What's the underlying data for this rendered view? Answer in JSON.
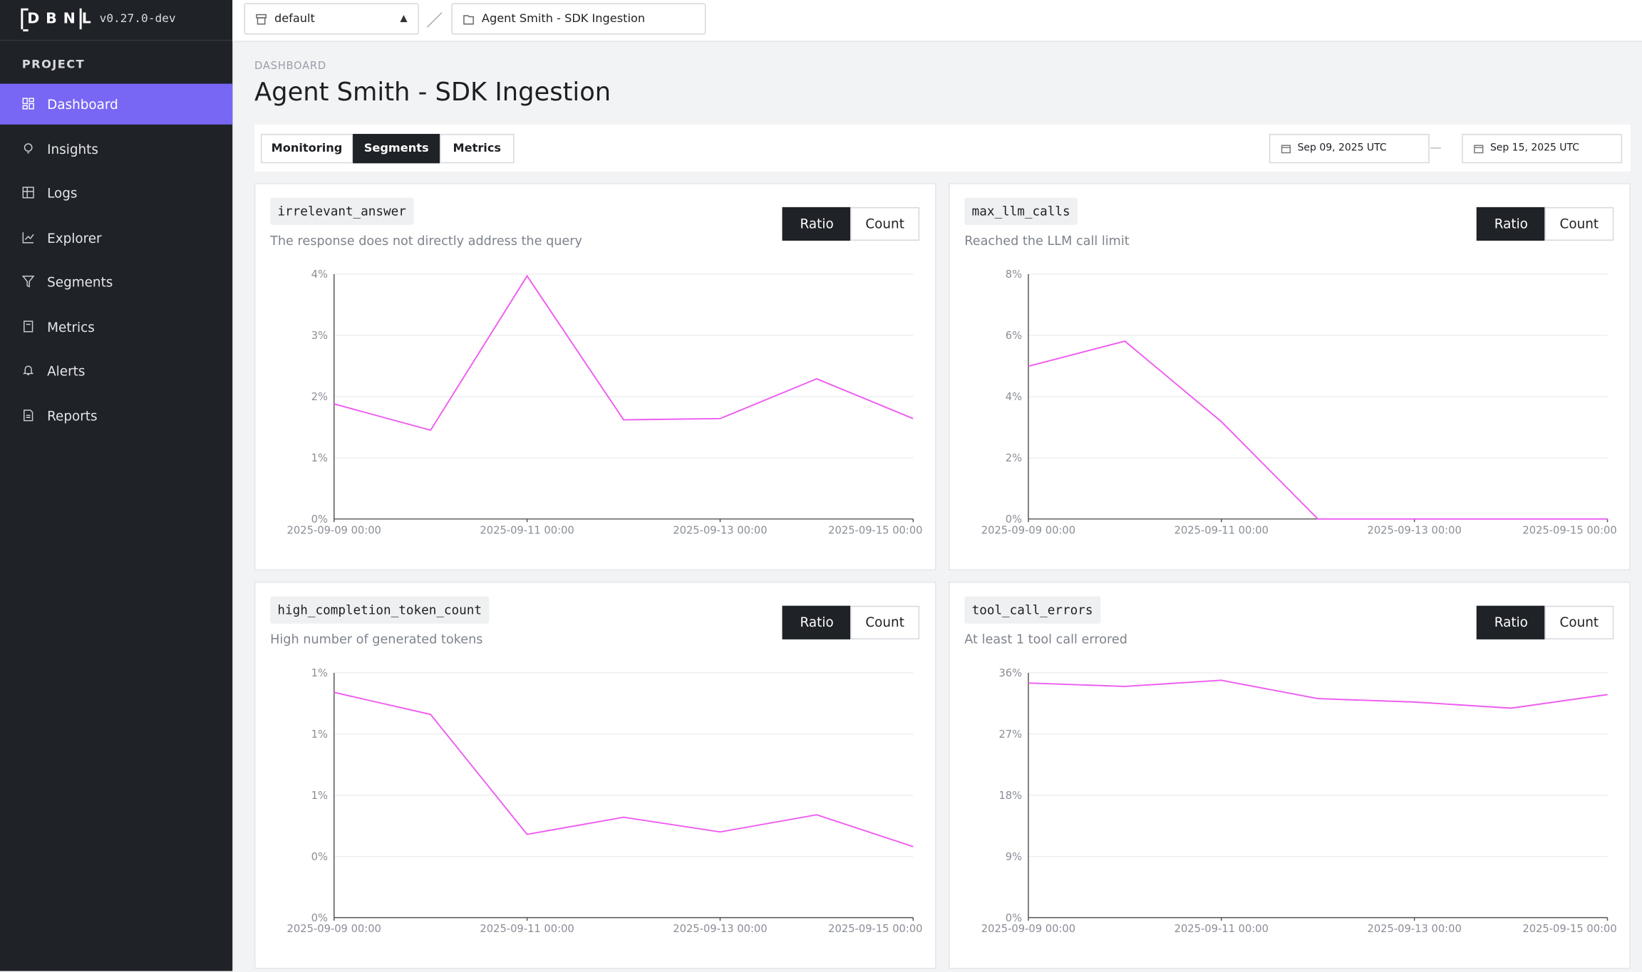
{
  "app": {
    "logo": "DBNL",
    "version": "v0.27.0-dev"
  },
  "sidebar": {
    "section": "PROJECT",
    "items": [
      "Dashboard",
      "Insights",
      "Logs",
      "Explorer",
      "Segments",
      "Metrics",
      "Alerts",
      "Reports"
    ]
  },
  "topbar": {
    "project": "default",
    "dashboard": "Agent Smith - SDK Ingestion"
  },
  "header": {
    "breadcrumb": "DASHBOARD",
    "title": "Agent Smith - SDK Ingestion"
  },
  "tabs": [
    "Monitoring",
    "Segments",
    "Metrics"
  ],
  "date_range": {
    "start": "Sep 09, 2025 UTC",
    "end": "Sep 15, 2025 UTC"
  },
  "chart_data": [
    {
      "type": "line",
      "title": "irrelevant_answer",
      "subtitle": "The response does not directly address the query",
      "toggle": [
        "Ratio",
        "Count"
      ],
      "x": [
        "2025-09-09 00:00",
        "2025-09-10 00:00",
        "2025-09-11 00:00",
        "2025-09-12 00:00",
        "2025-09-13 00:00",
        "2025-09-14 00:00",
        "2025-09-15 00:00"
      ],
      "values": [
        1.88,
        1.45,
        3.97,
        1.62,
        1.64,
        2.29,
        1.64
      ],
      "color": "#ee5cf0",
      "xlim": [
        "2025-09-09 00:00",
        "2025-09-15 00:00"
      ],
      "xticks": [
        "2025-09-09 00:00",
        "2025-09-11 00:00",
        "2025-09-13 00:00",
        "2025-09-15 00:00"
      ],
      "ylim": [
        0,
        4
      ],
      "yticks": [
        {
          "value": 0,
          "label": "0%"
        },
        {
          "value": 1,
          "label": "1%"
        },
        {
          "value": 2,
          "label": "2%"
        },
        {
          "value": 3,
          "label": "3%"
        },
        {
          "value": 4,
          "label": "4%"
        }
      ],
      "grid": true
    },
    {
      "type": "line",
      "title": "max_llm_calls",
      "subtitle": "Reached the LLM call limit",
      "toggle": [
        "Ratio",
        "Count"
      ],
      "x": [
        "2025-09-09 00:00",
        "2025-09-10 00:00",
        "2025-09-11 00:00",
        "2025-09-12 00:00",
        "2025-09-13 00:00",
        "2025-09-14 00:00",
        "2025-09-15 00:00"
      ],
      "values": [
        4.99,
        5.81,
        3.18,
        0,
        0,
        0,
        0
      ],
      "color": "#ee5cf0",
      "xlim": [
        "2025-09-09 00:00",
        "2025-09-15 00:00"
      ],
      "xticks": [
        "2025-09-09 00:00",
        "2025-09-11 00:00",
        "2025-09-13 00:00",
        "2025-09-15 00:00"
      ],
      "ylim": [
        0,
        8
      ],
      "yticks": [
        {
          "value": 0,
          "label": "0%"
        },
        {
          "value": 2,
          "label": "2%"
        },
        {
          "value": 4,
          "label": "4%"
        },
        {
          "value": 6,
          "label": "6%"
        },
        {
          "value": 8,
          "label": "8%"
        }
      ],
      "grid": true
    },
    {
      "type": "line",
      "title": "high_completion_token_count",
      "subtitle": "High number of generated tokens",
      "toggle": [
        "Ratio",
        "Count"
      ],
      "x": [
        "2025-09-09 00:00",
        "2025-09-10 00:00",
        "2025-09-11 00:00",
        "2025-09-12 00:00",
        "2025-09-13 00:00",
        "2025-09-14 00:00",
        "2025-09-15 00:00"
      ],
      "values": [
        0.92,
        0.83,
        0.34,
        0.41,
        0.35,
        0.42,
        0.29
      ],
      "color": "#ee5cf0",
      "xlim": [
        "2025-09-09 00:00",
        "2025-09-15 00:00"
      ],
      "xticks": [
        "2025-09-09 00:00",
        "2025-09-11 00:00",
        "2025-09-13 00:00",
        "2025-09-15 00:00"
      ],
      "ylim": [
        0,
        1
      ],
      "yticks": [
        {
          "value": 0,
          "label": "0%"
        },
        {
          "value": 0.25,
          "label": "0%"
        },
        {
          "value": 0.5,
          "label": "1%"
        },
        {
          "value": 0.75,
          "label": "1%"
        },
        {
          "value": 1,
          "label": "1%"
        }
      ],
      "grid": true
    },
    {
      "type": "line",
      "title": "tool_call_errors",
      "subtitle": "At least 1 tool call errored",
      "toggle": [
        "Ratio",
        "Count"
      ],
      "x": [
        "2025-09-09 00:00",
        "2025-09-10 00:00",
        "2025-09-11 00:00",
        "2025-09-12 00:00",
        "2025-09-13 00:00",
        "2025-09-14 00:00",
        "2025-09-15 00:00"
      ],
      "values": [
        34.5,
        34.0,
        34.9,
        32.2,
        31.7,
        30.8,
        32.8
      ],
      "color": "#ee5cf0",
      "xlim": [
        "2025-09-09 00:00",
        "2025-09-15 00:00"
      ],
      "xticks": [
        "2025-09-09 00:00",
        "2025-09-11 00:00",
        "2025-09-13 00:00",
        "2025-09-15 00:00"
      ],
      "ylim": [
        0,
        36
      ],
      "yticks": [
        {
          "value": 0,
          "label": "0%"
        },
        {
          "value": 9,
          "label": "9%"
        },
        {
          "value": 18,
          "label": "18%"
        },
        {
          "value": 27,
          "label": "27%"
        },
        {
          "value": 36,
          "label": "36%"
        }
      ],
      "grid": true
    }
  ]
}
